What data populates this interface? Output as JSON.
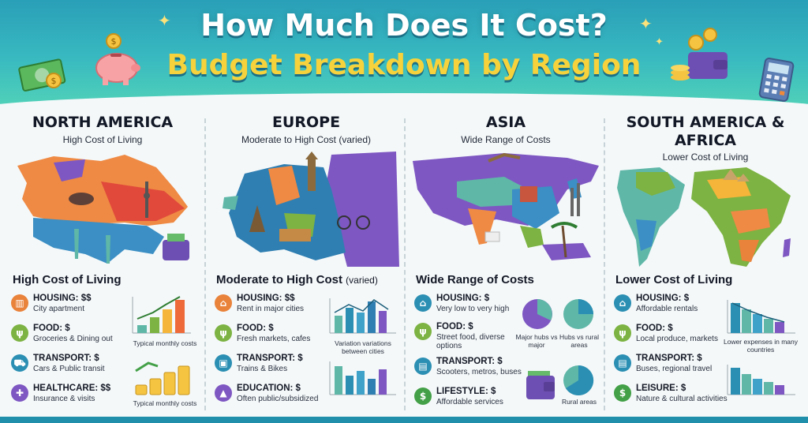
{
  "header": {
    "title": "How Much Does It Cost?",
    "subtitle": "Budget Breakdown by Region"
  },
  "columns": [
    {
      "region": "NORTH AMERICA",
      "sub": "High Cost of Living",
      "section": "High Cost of Living",
      "section_note": "",
      "items": [
        {
          "label": "HOUSING: $$",
          "detail": "City apartment",
          "icon": "building-icon",
          "color": "#e9823a"
        },
        {
          "label": "FOOD: $",
          "detail": "Groceries & Dining out",
          "icon": "utensils-icon",
          "color": "#7cb342"
        },
        {
          "label": "TRANSPORT: $",
          "detail": "Cars & Public transit",
          "icon": "car-icon",
          "color": "#2b8fb3"
        },
        {
          "label": "HEALTHCARE: $$",
          "detail": "Insurance & visits",
          "icon": "cross-icon",
          "color": "#7e57c2"
        }
      ],
      "captions": [
        "Typical monthly costs",
        "Typical monthly costs"
      ]
    },
    {
      "region": "EUROPE",
      "sub": "Moderate to High Cost (varied)",
      "section": "Moderate to High Cost",
      "section_note": "(varied)",
      "items": [
        {
          "label": "HOUSING: $$",
          "detail": "Rent in major cities",
          "icon": "home-icon",
          "color": "#e9823a"
        },
        {
          "label": "FOOD: $",
          "detail": "Fresh markets, cafes",
          "icon": "utensils-icon",
          "color": "#7cb342"
        },
        {
          "label": "TRANSPORT: $",
          "detail": "Trains & Bikes",
          "icon": "train-icon",
          "color": "#2b8fb3"
        },
        {
          "label": "EDUCATION: $",
          "detail": "Often public/subsidized",
          "icon": "graduation-cap-icon",
          "color": "#7e57c2"
        }
      ],
      "captions": [
        "Variation variations between cities"
      ]
    },
    {
      "region": "ASIA",
      "sub": "Wide Range of Costs",
      "section": "Wide Range of Costs",
      "section_note": "",
      "items": [
        {
          "label": "HOUSING: $",
          "detail": "Very low to very high",
          "icon": "home-icon",
          "color": "#2b8fb3"
        },
        {
          "label": "FOOD: $",
          "detail": "Street food, diverse options",
          "icon": "utensils-icon",
          "color": "#7cb342"
        },
        {
          "label": "TRANSPORT: $",
          "detail": "Scooters, metros, buses",
          "icon": "bus-icon",
          "color": "#2b8fb3"
        },
        {
          "label": "LIFESTYLE: $",
          "detail": "Affordable services",
          "icon": "dollar-icon",
          "color": "#43a047"
        }
      ],
      "captions": [
        "Major hubs vs major",
        "Hubs vs rural areas",
        "Rural areas"
      ]
    },
    {
      "region": "SOUTH AMERICA & AFRICA",
      "sub": "Lower Cost of Living",
      "section": "Lower Cost of Living",
      "section_note": "",
      "items": [
        {
          "label": "HOUSING: $",
          "detail": "Affordable rentals",
          "icon": "home-icon",
          "color": "#2b8fb3"
        },
        {
          "label": "FOOD: $",
          "detail": "Local produce, markets",
          "icon": "utensils-icon",
          "color": "#7cb342"
        },
        {
          "label": "TRANSPORT: $",
          "detail": "Buses, regional travel",
          "icon": "bus-icon",
          "color": "#2b8fb3"
        },
        {
          "label": "LEISURE: $",
          "detail": "Nature & cultural activities",
          "icon": "dollar-icon",
          "color": "#43a047"
        }
      ],
      "captions": [
        "Lower expenses in many countries"
      ]
    }
  ]
}
